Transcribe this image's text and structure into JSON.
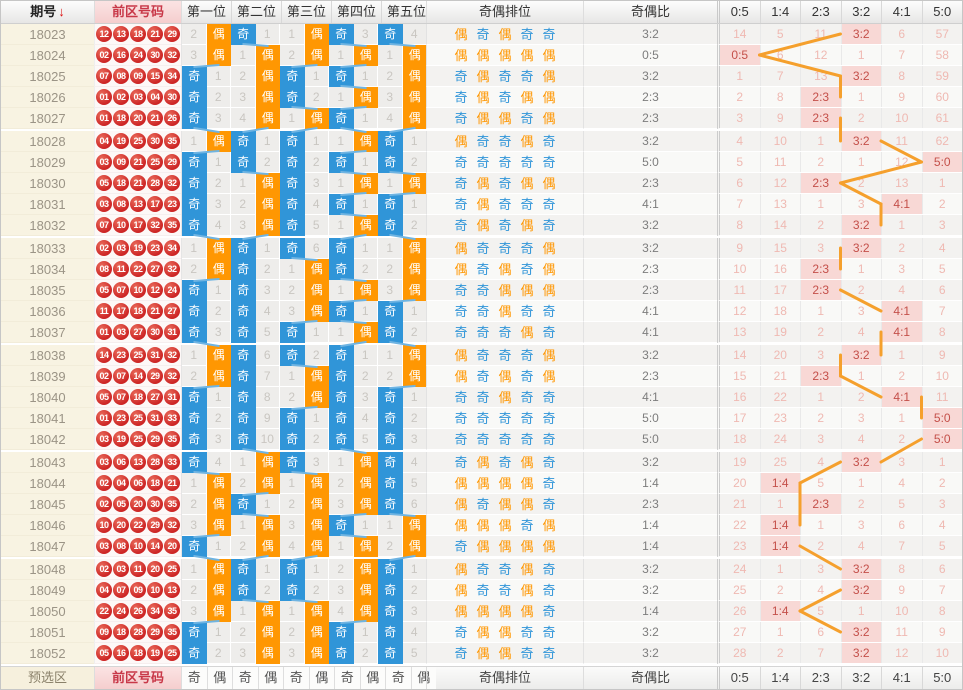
{
  "legend": {
    "odd": "奇",
    "even": "偶"
  },
  "colors": {
    "odd_blue": "#3095d8",
    "even_orange": "#ff9702",
    "ball_red": "#cd2525",
    "hit_bg_pink": "#f8d8d5",
    "hit_text_red": "#c4504a",
    "trend_line_blue": "#6fb4e2",
    "trend_line_orange": "#f5a02d"
  },
  "header": {
    "sort_arrow": "↓"
  },
  "footer": {
    "label": "预选区",
    "zone": "前区号码",
    "pattern": [
      "奇",
      "偶",
      "奇",
      "偶",
      "奇",
      "偶",
      "奇",
      "偶",
      "奇",
      "偶"
    ],
    "ranking": "奇偶排位",
    "ratio": "奇偶比"
  },
  "chart_data": {
    "type": "table",
    "columns": {
      "period": "期号",
      "zone": "前区号码",
      "positions": [
        "第一位",
        "第二位",
        "第三位",
        "第四位",
        "第五位"
      ],
      "ranking": "奇偶排位",
      "ratio": "奇偶比",
      "stat_columns": [
        "0:5",
        "1:4",
        "2:3",
        "3:2",
        "4:1",
        "5:0"
      ]
    },
    "rows": [
      {
        "period": "18023",
        "numbers": [
          "12",
          "13",
          "18",
          "21",
          "29"
        ],
        "parity": [
          "E",
          "O",
          "E",
          "O",
          "O"
        ],
        "miss": [
          2,
          1,
          1,
          3,
          4
        ],
        "ratio": "3:2",
        "stats": [
          14,
          5,
          11,
          "3:2",
          6,
          57
        ],
        "hit": 3
      },
      {
        "period": "18024",
        "numbers": [
          "02",
          "16",
          "24",
          "30",
          "32"
        ],
        "parity": [
          "E",
          "E",
          "E",
          "E",
          "E"
        ],
        "miss": [
          3,
          1,
          2,
          1,
          1
        ],
        "ratio": "0:5",
        "stats": [
          "0:5",
          6,
          12,
          1,
          7,
          58
        ],
        "hit": 0
      },
      {
        "period": "18025",
        "numbers": [
          "07",
          "08",
          "09",
          "15",
          "34"
        ],
        "parity": [
          "O",
          "E",
          "O",
          "O",
          "E"
        ],
        "miss": [
          1,
          2,
          1,
          1,
          2
        ],
        "ratio": "3:2",
        "stats": [
          1,
          7,
          13,
          "3:2",
          8,
          59
        ],
        "hit": 3
      },
      {
        "period": "18026",
        "numbers": [
          "01",
          "02",
          "03",
          "04",
          "30"
        ],
        "parity": [
          "O",
          "E",
          "O",
          "E",
          "E"
        ],
        "miss": [
          2,
          3,
          2,
          1,
          3
        ],
        "ratio": "2:3",
        "stats": [
          2,
          8,
          "2:3",
          1,
          9,
          60
        ],
        "hit": 2
      },
      {
        "period": "18027",
        "numbers": [
          "01",
          "18",
          "20",
          "21",
          "26"
        ],
        "parity": [
          "O",
          "E",
          "E",
          "O",
          "E"
        ],
        "miss": [
          3,
          4,
          1,
          1,
          4
        ],
        "ratio": "2:3",
        "stats": [
          3,
          9,
          "2:3",
          2,
          10,
          61
        ],
        "hit": 2
      },
      {
        "period": "18028",
        "numbers": [
          "04",
          "19",
          "25",
          "30",
          "35"
        ],
        "parity": [
          "E",
          "O",
          "O",
          "E",
          "O"
        ],
        "miss": [
          1,
          1,
          1,
          1,
          1
        ],
        "ratio": "3:2",
        "stats": [
          4,
          10,
          1,
          "3:2",
          11,
          62
        ],
        "hit": 3
      },
      {
        "period": "18029",
        "numbers": [
          "03",
          "09",
          "21",
          "25",
          "29"
        ],
        "parity": [
          "O",
          "O",
          "O",
          "O",
          "O"
        ],
        "miss": [
          1,
          2,
          2,
          1,
          2
        ],
        "ratio": "5:0",
        "stats": [
          5,
          11,
          2,
          1,
          12,
          "5:0"
        ],
        "hit": 5
      },
      {
        "period": "18030",
        "numbers": [
          "05",
          "18",
          "21",
          "28",
          "32"
        ],
        "parity": [
          "O",
          "E",
          "O",
          "E",
          "E"
        ],
        "miss": [
          2,
          1,
          3,
          1,
          1
        ],
        "ratio": "2:3",
        "stats": [
          6,
          12,
          "2:3",
          2,
          13,
          1
        ],
        "hit": 2
      },
      {
        "period": "18031",
        "numbers": [
          "03",
          "08",
          "13",
          "17",
          "23"
        ],
        "parity": [
          "O",
          "E",
          "O",
          "O",
          "O"
        ],
        "miss": [
          3,
          2,
          4,
          1,
          1
        ],
        "ratio": "4:1",
        "stats": [
          7,
          13,
          1,
          3,
          "4:1",
          2
        ],
        "hit": 4
      },
      {
        "period": "18032",
        "numbers": [
          "07",
          "10",
          "17",
          "32",
          "35"
        ],
        "parity": [
          "O",
          "E",
          "O",
          "E",
          "O"
        ],
        "miss": [
          4,
          3,
          5,
          1,
          2
        ],
        "ratio": "3:2",
        "stats": [
          8,
          14,
          2,
          "3:2",
          1,
          3
        ],
        "hit": 3
      },
      {
        "period": "18033",
        "numbers": [
          "02",
          "03",
          "19",
          "23",
          "34"
        ],
        "parity": [
          "E",
          "O",
          "O",
          "O",
          "E"
        ],
        "miss": [
          1,
          1,
          6,
          1,
          1
        ],
        "ratio": "3:2",
        "stats": [
          9,
          15,
          3,
          "3:2",
          2,
          4
        ],
        "hit": 3
      },
      {
        "period": "18034",
        "numbers": [
          "08",
          "11",
          "22",
          "27",
          "32"
        ],
        "parity": [
          "E",
          "O",
          "E",
          "O",
          "E"
        ],
        "miss": [
          2,
          2,
          1,
          2,
          2
        ],
        "ratio": "2:3",
        "stats": [
          10,
          16,
          "2:3",
          1,
          3,
          5
        ],
        "hit": 2
      },
      {
        "period": "18035",
        "numbers": [
          "05",
          "07",
          "10",
          "12",
          "24"
        ],
        "parity": [
          "O",
          "O",
          "E",
          "E",
          "E"
        ],
        "miss": [
          1,
          3,
          2,
          1,
          3
        ],
        "ratio": "2:3",
        "stats": [
          11,
          17,
          "2:3",
          2,
          4,
          6
        ],
        "hit": 2
      },
      {
        "period": "18036",
        "numbers": [
          "11",
          "17",
          "18",
          "21",
          "27"
        ],
        "parity": [
          "O",
          "O",
          "E",
          "O",
          "O"
        ],
        "miss": [
          2,
          4,
          3,
          1,
          1
        ],
        "ratio": "4:1",
        "stats": [
          12,
          18,
          1,
          3,
          "4:1",
          7
        ],
        "hit": 4
      },
      {
        "period": "18037",
        "numbers": [
          "01",
          "03",
          "27",
          "30",
          "31"
        ],
        "parity": [
          "O",
          "O",
          "O",
          "E",
          "O"
        ],
        "miss": [
          3,
          5,
          1,
          1,
          2
        ],
        "ratio": "4:1",
        "stats": [
          13,
          19,
          2,
          4,
          "4:1",
          8
        ],
        "hit": 4
      },
      {
        "period": "18038",
        "numbers": [
          "14",
          "23",
          "25",
          "31",
          "32"
        ],
        "parity": [
          "E",
          "O",
          "O",
          "O",
          "E"
        ],
        "miss": [
          1,
          6,
          2,
          1,
          1
        ],
        "ratio": "3:2",
        "stats": [
          14,
          20,
          3,
          "3:2",
          1,
          9
        ],
        "hit": 3
      },
      {
        "period": "18039",
        "numbers": [
          "02",
          "07",
          "14",
          "29",
          "32"
        ],
        "parity": [
          "E",
          "O",
          "E",
          "O",
          "E"
        ],
        "miss": [
          2,
          7,
          1,
          2,
          2
        ],
        "ratio": "2:3",
        "stats": [
          15,
          21,
          "2:3",
          1,
          2,
          10
        ],
        "hit": 2
      },
      {
        "period": "18040",
        "numbers": [
          "05",
          "07",
          "18",
          "27",
          "31"
        ],
        "parity": [
          "O",
          "O",
          "E",
          "O",
          "O"
        ],
        "miss": [
          1,
          8,
          2,
          3,
          1
        ],
        "ratio": "4:1",
        "stats": [
          16,
          22,
          1,
          2,
          "4:1",
          11
        ],
        "hit": 4
      },
      {
        "period": "18041",
        "numbers": [
          "01",
          "23",
          "25",
          "31",
          "33"
        ],
        "parity": [
          "O",
          "O",
          "O",
          "O",
          "O"
        ],
        "miss": [
          2,
          9,
          1,
          4,
          2
        ],
        "ratio": "5:0",
        "stats": [
          17,
          23,
          2,
          3,
          1,
          "5:0"
        ],
        "hit": 5
      },
      {
        "period": "18042",
        "numbers": [
          "03",
          "19",
          "25",
          "29",
          "35"
        ],
        "parity": [
          "O",
          "O",
          "O",
          "O",
          "O"
        ],
        "miss": [
          3,
          10,
          2,
          5,
          3
        ],
        "ratio": "5:0",
        "stats": [
          18,
          24,
          3,
          4,
          2,
          "5:0"
        ],
        "hit": 5
      },
      {
        "period": "18043",
        "numbers": [
          "03",
          "06",
          "13",
          "28",
          "33"
        ],
        "parity": [
          "O",
          "E",
          "O",
          "E",
          "O"
        ],
        "miss": [
          4,
          1,
          3,
          1,
          4
        ],
        "ratio": "3:2",
        "stats": [
          19,
          25,
          4,
          "3:2",
          3,
          1
        ],
        "hit": 3
      },
      {
        "period": "18044",
        "numbers": [
          "02",
          "04",
          "06",
          "18",
          "21"
        ],
        "parity": [
          "E",
          "E",
          "E",
          "E",
          "O"
        ],
        "miss": [
          1,
          2,
          1,
          2,
          5
        ],
        "ratio": "1:4",
        "stats": [
          20,
          "1:4",
          5,
          1,
          4,
          2
        ],
        "hit": 1
      },
      {
        "period": "18045",
        "numbers": [
          "02",
          "05",
          "20",
          "30",
          "35"
        ],
        "parity": [
          "E",
          "O",
          "E",
          "E",
          "O"
        ],
        "miss": [
          2,
          1,
          2,
          3,
          6
        ],
        "ratio": "2:3",
        "stats": [
          21,
          1,
          "2:3",
          2,
          5,
          3
        ],
        "hit": 2
      },
      {
        "period": "18046",
        "numbers": [
          "10",
          "20",
          "22",
          "29",
          "32"
        ],
        "parity": [
          "E",
          "E",
          "E",
          "O",
          "E"
        ],
        "miss": [
          3,
          1,
          3,
          1,
          1
        ],
        "ratio": "1:4",
        "stats": [
          22,
          "1:4",
          1,
          3,
          6,
          4
        ],
        "hit": 1
      },
      {
        "period": "18047",
        "numbers": [
          "03",
          "08",
          "10",
          "14",
          "20"
        ],
        "parity": [
          "O",
          "E",
          "E",
          "E",
          "E"
        ],
        "miss": [
          1,
          2,
          4,
          1,
          2
        ],
        "ratio": "1:4",
        "stats": [
          23,
          "1:4",
          2,
          4,
          7,
          5
        ],
        "hit": 1
      },
      {
        "period": "18048",
        "numbers": [
          "02",
          "03",
          "11",
          "20",
          "25"
        ],
        "parity": [
          "E",
          "O",
          "O",
          "E",
          "O"
        ],
        "miss": [
          1,
          1,
          1,
          2,
          1
        ],
        "ratio": "3:2",
        "stats": [
          24,
          1,
          3,
          "3:2",
          8,
          6
        ],
        "hit": 3
      },
      {
        "period": "18049",
        "numbers": [
          "04",
          "07",
          "09",
          "10",
          "13"
        ],
        "parity": [
          "E",
          "O",
          "O",
          "E",
          "O"
        ],
        "miss": [
          2,
          2,
          2,
          3,
          2
        ],
        "ratio": "3:2",
        "stats": [
          25,
          2,
          4,
          "3:2",
          9,
          7
        ],
        "hit": 3
      },
      {
        "period": "18050",
        "numbers": [
          "22",
          "24",
          "26",
          "34",
          "35"
        ],
        "parity": [
          "E",
          "E",
          "E",
          "E",
          "O"
        ],
        "miss": [
          3,
          1,
          1,
          4,
          3
        ],
        "ratio": "1:4",
        "stats": [
          26,
          "1:4",
          5,
          1,
          10,
          8
        ],
        "hit": 1
      },
      {
        "period": "18051",
        "numbers": [
          "09",
          "18",
          "28",
          "29",
          "35"
        ],
        "parity": [
          "O",
          "E",
          "E",
          "O",
          "O"
        ],
        "miss": [
          1,
          2,
          2,
          1,
          4
        ],
        "ratio": "3:2",
        "stats": [
          27,
          1,
          6,
          "3:2",
          11,
          9
        ],
        "hit": 3
      },
      {
        "period": "18052",
        "numbers": [
          "05",
          "16",
          "18",
          "19",
          "25"
        ],
        "parity": [
          "O",
          "E",
          "E",
          "O",
          "O"
        ],
        "miss": [
          2,
          3,
          3,
          2,
          5
        ],
        "ratio": "3:2",
        "stats": [
          28,
          2,
          7,
          "3:2",
          12,
          10
        ],
        "hit": 3
      }
    ]
  }
}
